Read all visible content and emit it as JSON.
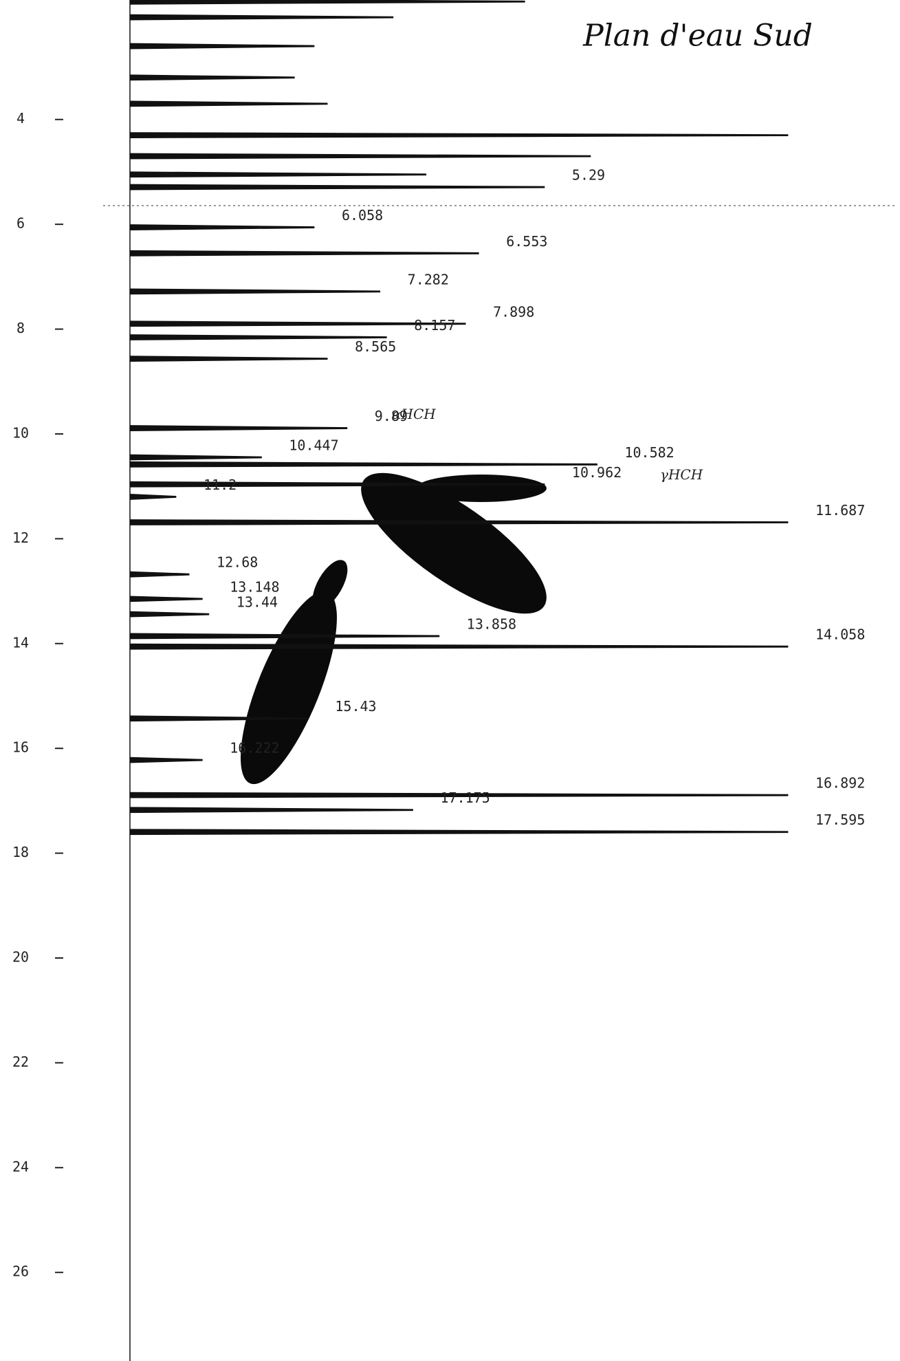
{
  "chart_data": {
    "type": "chromatogram",
    "title": "Plan d'eau Sud",
    "ylim": [
      1.72,
      27.69
    ],
    "yticks": [
      4,
      6,
      8,
      10,
      12,
      14,
      16,
      18,
      20,
      22,
      24,
      26
    ],
    "xlim": [
      0,
      100
    ],
    "color": "#111111",
    "labeled_peaks": {
      "times": [
        5.29,
        6.058,
        6.553,
        7.282,
        7.898,
        8.157,
        8.565,
        9.89,
        10.447,
        10.582,
        10.962,
        11.2,
        11.687,
        12.68,
        13.148,
        13.44,
        13.858,
        14.058,
        15.43,
        16.222,
        16.892,
        17.175,
        17.595
      ],
      "heights": [
        63,
        28,
        53,
        38,
        51,
        39,
        30,
        33,
        20,
        71,
        63,
        7,
        100,
        9,
        11,
        12,
        47,
        100,
        27,
        11,
        100,
        43,
        100
      ]
    },
    "other_peaks": {
      "times": [
        1.75,
        2.05,
        2.6,
        3.2,
        3.7,
        4.3,
        4.7,
        5.05
      ],
      "heights": [
        60,
        40,
        28,
        25,
        30,
        100,
        70,
        45
      ]
    },
    "annotations": [
      {
        "text": "αHCH",
        "time": 9.8
      },
      {
        "text": "γHCH",
        "time": 10.95
      }
    ]
  }
}
